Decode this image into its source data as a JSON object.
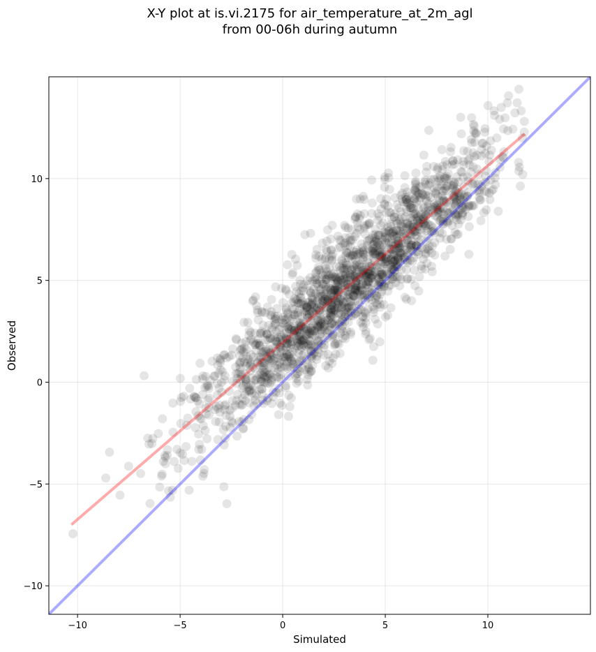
{
  "chart_data": {
    "type": "scatter",
    "title_lines": [
      "X-Y plot at is.vi.2175 for air_temperature_at_2m_agl",
      "from 00-06h during autumn"
    ],
    "xlabel": "Simulated",
    "ylabel": "Observed",
    "xlim": [
      -11.4,
      15.0
    ],
    "ylim": [
      -11.4,
      15.0
    ],
    "xticks": [
      -10,
      -5,
      0,
      5,
      10
    ],
    "yticks": [
      -10,
      -5,
      0,
      5,
      10
    ],
    "xtick_labels": [
      "−10",
      "−5",
      "0",
      "5",
      "10"
    ],
    "ytick_labels": [
      "−10",
      "−5",
      "0",
      "5",
      "10"
    ],
    "grid": true,
    "point_color": "#000000",
    "point_alpha": 0.1,
    "reference_line": {
      "name": "1:1",
      "color": "#0000ff",
      "alpha": 0.33,
      "x": [
        -11.4,
        15.0
      ],
      "y": [
        -11.4,
        15.0
      ]
    },
    "regression_line": {
      "color": "#ff0000",
      "alpha": 0.33,
      "x": [
        -10.3,
        11.8
      ],
      "y": [
        -7.0,
        12.2
      ]
    },
    "points": {
      "seed": 2175,
      "count": 1900,
      "x_center": 3.2,
      "x_spread": 3.9,
      "y_slope": 0.87,
      "y_intercept": 1.95,
      "y_noise": 1.4,
      "x_range": [
        -10.4,
        11.9
      ]
    }
  }
}
